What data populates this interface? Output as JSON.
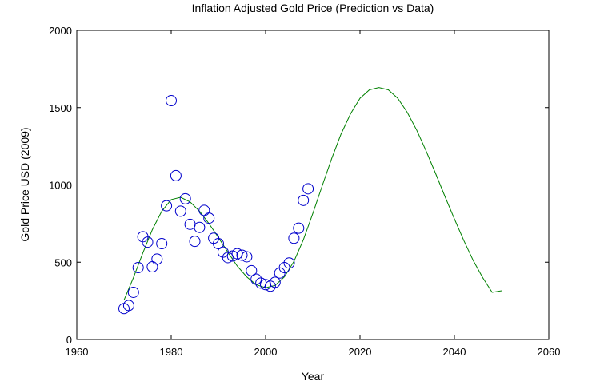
{
  "chart_data": {
    "type": "scatter",
    "title": "Inflation Adjusted Gold Price (Prediction vs Data)",
    "xlabel": "Year",
    "ylabel": "Gold Price USD (2009)",
    "xlim": [
      1960,
      2060
    ],
    "ylim": [
      0,
      2000
    ],
    "xticks": [
      1960,
      1980,
      2000,
      2020,
      2040,
      2060
    ],
    "yticks": [
      0,
      500,
      1000,
      1500,
      2000
    ],
    "grid": false,
    "legend": "none",
    "series": [
      {
        "role": "data",
        "marker": "open-circle",
        "color": "#0000cc",
        "x": [
          1970,
          1971,
          1972,
          1973,
          1974,
          1975,
          1976,
          1977,
          1978,
          1979,
          1980,
          1981,
          1982,
          1983,
          1984,
          1985,
          1986,
          1987,
          1988,
          1989,
          1990,
          1991,
          1992,
          1993,
          1994,
          1995,
          1996,
          1997,
          1998,
          1999,
          2000,
          2001,
          2002,
          2003,
          2004,
          2005,
          2006,
          2007,
          2008,
          2009
        ],
        "y": [
          200,
          220,
          305,
          465,
          665,
          630,
          470,
          520,
          620,
          865,
          1545,
          1060,
          830,
          910,
          745,
          635,
          725,
          835,
          785,
          655,
          620,
          565,
          530,
          540,
          555,
          545,
          535,
          445,
          390,
          365,
          355,
          345,
          370,
          430,
          465,
          495,
          655,
          720,
          900,
          975
        ]
      },
      {
        "role": "prediction",
        "marker": "line",
        "color": "#008000",
        "x": [
          1970,
          1972,
          1974,
          1976,
          1978,
          1980,
          1982,
          1984,
          1986,
          1988,
          1990,
          1992,
          1994,
          1996,
          1998,
          2000,
          2002,
          2004,
          2006,
          2008,
          2010,
          2012,
          2014,
          2016,
          2018,
          2020,
          2022,
          2024,
          2026,
          2028,
          2030,
          2032,
          2034,
          2036,
          2038,
          2040,
          2042,
          2044,
          2046,
          2048,
          2050
        ],
        "y": [
          255,
          400,
          560,
          710,
          830,
          905,
          920,
          890,
          830,
          750,
          660,
          565,
          475,
          405,
          355,
          335,
          350,
          405,
          505,
          645,
          815,
          995,
          1170,
          1330,
          1460,
          1560,
          1615,
          1630,
          1615,
          1560,
          1470,
          1355,
          1220,
          1075,
          925,
          780,
          640,
          510,
          400,
          305,
          315
        ]
      }
    ]
  }
}
